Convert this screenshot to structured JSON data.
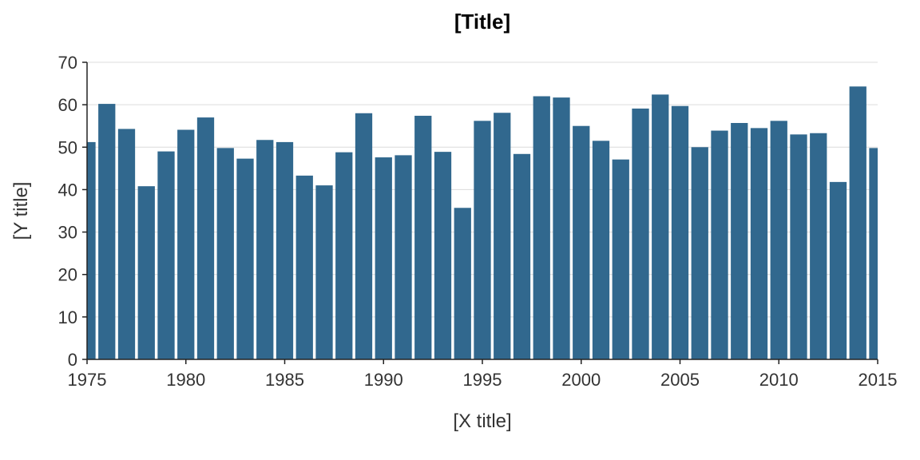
{
  "chart_data": {
    "type": "bar",
    "title": "[Title]",
    "xlabel": "[X title]",
    "ylabel": "[Y title]",
    "x": [
      1975,
      1976,
      1977,
      1978,
      1979,
      1980,
      1981,
      1982,
      1983,
      1984,
      1985,
      1986,
      1987,
      1988,
      1989,
      1990,
      1991,
      1992,
      1993,
      1994,
      1995,
      1996,
      1997,
      1998,
      1999,
      2000,
      2001,
      2002,
      2003,
      2004,
      2005,
      2006,
      2007,
      2008,
      2009,
      2010,
      2011,
      2012,
      2013,
      2014,
      2015
    ],
    "values": [
      51.2,
      60.2,
      54.3,
      40.8,
      49.0,
      54.1,
      57.0,
      49.8,
      47.3,
      51.7,
      51.2,
      43.3,
      41.0,
      48.8,
      58.0,
      47.6,
      48.1,
      57.4,
      48.9,
      35.7,
      56.2,
      58.1,
      48.4,
      62.0,
      61.7,
      55.0,
      51.5,
      47.1,
      59.1,
      62.4,
      59.7,
      50.0,
      53.9,
      55.7,
      54.5,
      56.2,
      53.0,
      53.3,
      41.8,
      64.3,
      49.8
    ],
    "ylim": [
      0,
      70
    ],
    "xlim": [
      1975,
      2015
    ],
    "xticks": [
      "1975",
      "1980",
      "1985",
      "1990",
      "1995",
      "2000",
      "2005",
      "2010",
      "2015"
    ],
    "yticks": [
      "0",
      "10",
      "20",
      "30",
      "40",
      "50",
      "60",
      "70"
    ],
    "grid": "horizontal",
    "bar_color": "#31688e"
  }
}
